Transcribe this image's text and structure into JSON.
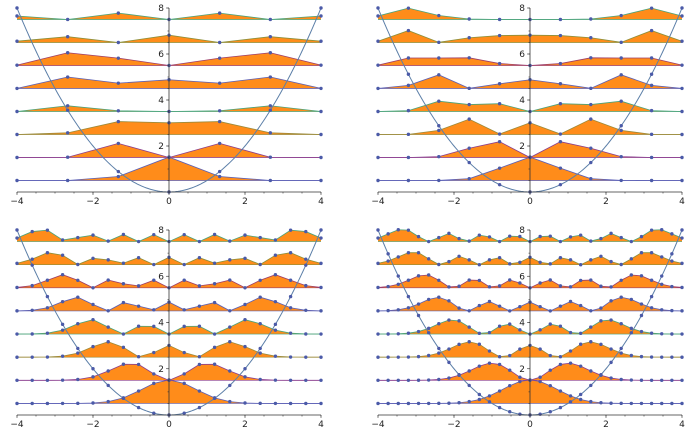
{
  "figure": {
    "title": "",
    "description": ""
  },
  "chart_data": [
    {
      "type": "line",
      "title": "",
      "panel": "top-left",
      "points": 7,
      "xlim": [
        -4,
        4
      ],
      "ylim": [
        0,
        8
      ],
      "xticks": [
        -4,
        -2,
        0,
        2,
        4
      ],
      "yticks": [
        2,
        4,
        6,
        8
      ],
      "potential": "x^2/2"
    },
    {
      "type": "line",
      "title": "",
      "panel": "top-right",
      "points": 11,
      "xlim": [
        -4,
        4
      ],
      "ylim": [
        0,
        8
      ],
      "xticks": [
        -4,
        -2,
        0,
        2,
        4
      ],
      "yticks": [
        2,
        4,
        6,
        8
      ],
      "potential": "x^2/2"
    },
    {
      "type": "line",
      "title": "",
      "panel": "bottom-left",
      "points": 21,
      "xlim": [
        -4,
        4
      ],
      "ylim": [
        0,
        8
      ],
      "xticks": [
        -4,
        -2,
        0,
        2,
        4
      ],
      "yticks": [
        2,
        4,
        6,
        8
      ],
      "potential": "x^2/2"
    },
    {
      "type": "line",
      "title": "",
      "panel": "bottom-right",
      "points": 31,
      "xlim": [
        -4,
        4
      ],
      "ylim": [
        0,
        8
      ],
      "xticks": [
        -4,
        -2,
        0,
        2,
        4
      ],
      "yticks": [
        2,
        4,
        6,
        8
      ],
      "potential": "x^2/2"
    }
  ],
  "levels": {
    "count": 8,
    "energies": [
      0.5,
      1.5,
      2.5,
      3.5,
      4.5,
      5.5,
      6.5,
      7.5
    ],
    "colors": [
      "#5b5fb5",
      "#8a3d8e",
      "#9a8a3a",
      "#4aa37a",
      "#5b5fb5",
      "#9c3d6a",
      "#8c8f3a",
      "#4aa37a"
    ]
  },
  "colors": {
    "fill": "#ff8c1a",
    "parabola": "#5c7fa8",
    "marker": "#4b5aa8",
    "axis": "#333333"
  }
}
